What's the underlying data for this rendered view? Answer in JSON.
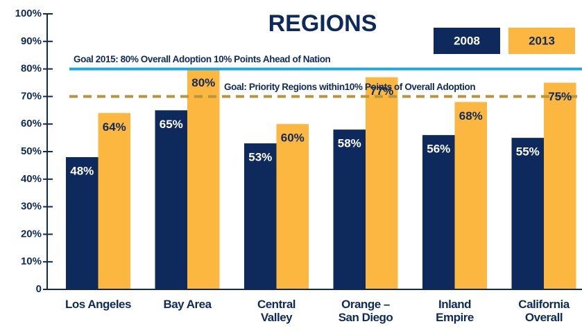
{
  "chart_data": {
    "type": "bar",
    "title": "REGIONS",
    "categories": [
      "Los Angeles",
      "Bay Area",
      "Central\nValley",
      "Orange –\nSan Diego",
      "Inland\nEmpire",
      "California\nOverall"
    ],
    "series": [
      {
        "name": "2008",
        "color": "#0e2a5c",
        "values": [
          48,
          65,
          53,
          58,
          56,
          55
        ],
        "value_labels": [
          "48%",
          "65%",
          "53%",
          "58%",
          "56%",
          "55%"
        ]
      },
      {
        "name": "2013",
        "color": "#fbb73f",
        "values": [
          64,
          80,
          60,
          77,
          68,
          75
        ],
        "value_labels": [
          "64%",
          "80%",
          "60%",
          "77%",
          "68%",
          "75%"
        ]
      }
    ],
    "ylim": [
      0,
      100
    ],
    "yticks": [
      0,
      {
        "value": 10,
        "label": "10%"
      },
      {
        "value": 20,
        "label": "20%"
      },
      {
        "value": 30,
        "label": "30%"
      },
      {
        "value": 40,
        "label": "40%"
      },
      {
        "value": 50,
        "label": "50%"
      },
      {
        "value": 60,
        "label": "60%"
      },
      {
        "value": 70,
        "label": "70%"
      },
      {
        "value": 80,
        "label": "80%"
      },
      {
        "value": 90,
        "label": "90%"
      },
      {
        "value": 100,
        "label": "100%"
      }
    ],
    "reference_lines": [
      {
        "value": 80,
        "label": "Goal 2015:  80% Overall Adoption 10% Points Ahead of Nation",
        "color": "#1ba8e0",
        "style": "solid"
      },
      {
        "value": 70,
        "label": "Goal:  Priority Regions within10% Points of Overall Adoption",
        "color": "#b8943e",
        "style": "dashed"
      }
    ],
    "legend": "top-right"
  }
}
